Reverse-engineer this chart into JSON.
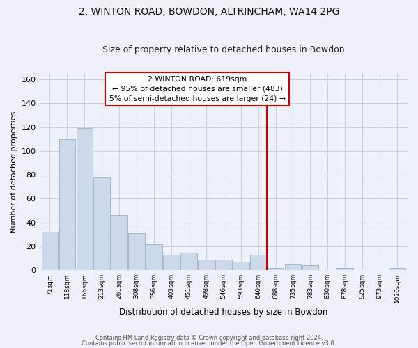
{
  "title": "2, WINTON ROAD, BOWDON, ALTRINCHAM, WA14 2PG",
  "subtitle": "Size of property relative to detached houses in Bowdon",
  "xlabel": "Distribution of detached houses by size in Bowdon",
  "ylabel": "Number of detached properties",
  "bar_color": "#ccd9e8",
  "bar_edge_color": "#9ab0c8",
  "categories": [
    "71sqm",
    "118sqm",
    "166sqm",
    "213sqm",
    "261sqm",
    "308sqm",
    "356sqm",
    "403sqm",
    "451sqm",
    "498sqm",
    "546sqm",
    "593sqm",
    "640sqm",
    "688sqm",
    "735sqm",
    "783sqm",
    "830sqm",
    "878sqm",
    "925sqm",
    "973sqm",
    "1020sqm"
  ],
  "values": [
    32,
    110,
    119,
    78,
    46,
    31,
    22,
    13,
    15,
    9,
    9,
    7,
    13,
    2,
    5,
    4,
    0,
    2,
    0,
    0,
    2
  ],
  "vline_x": 12.5,
  "vline_color": "#cc0000",
  "annotation_title": "2 WINTON ROAD: 619sqm",
  "annotation_line1": "← 95% of detached houses are smaller (483)",
  "annotation_line2": "5% of semi-detached houses are larger (24) →",
  "footer_line1": "Contains HM Land Registry data © Crown copyright and database right 2024.",
  "footer_line2": "Contains public sector information licensed under the Open Government Licence v3.0.",
  "ylim": [
    0,
    165
  ],
  "yticks": [
    0,
    20,
    40,
    60,
    80,
    100,
    120,
    140,
    160
  ],
  "background_color": "#eef2f8",
  "grid_color": "#c8d0dc",
  "plot_bg_color": "#eef2f8"
}
